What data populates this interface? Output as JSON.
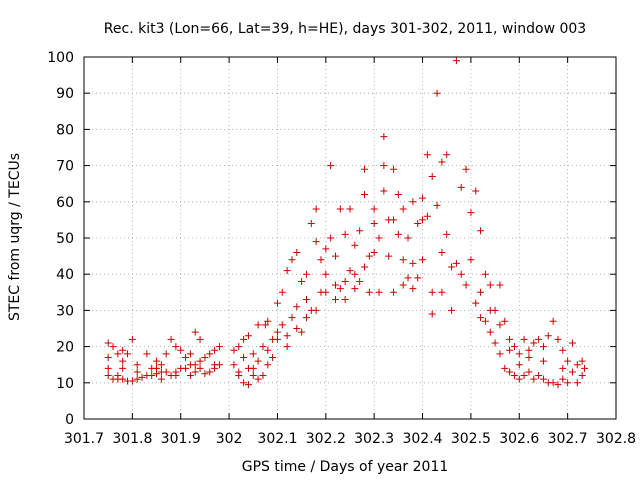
{
  "chart_data": {
    "type": "scatter",
    "title": "Rec. kit3 (Lon=66, Lat=39, h=HE), days 301-302, 2011, window 003",
    "xlabel": "GPS time / Days of year 2011",
    "ylabel": "STEC from uqrg / TECUs",
    "xlim": [
      301.7,
      302.8
    ],
    "ylim": [
      0,
      100
    ],
    "x_ticks": [
      301.7,
      301.8,
      301.9,
      302.0,
      302.1,
      302.2,
      302.3,
      302.4,
      302.5,
      302.6,
      302.7,
      302.8
    ],
    "x_tick_labels": [
      "301.7",
      "301.8",
      "301.9",
      "302",
      "302.1",
      "302.2",
      "302.3",
      "302.4",
      "302.5",
      "302.6",
      "302.7",
      "302.8"
    ],
    "y_ticks": [
      0,
      10,
      20,
      30,
      40,
      50,
      60,
      70,
      80,
      90,
      100
    ],
    "y_tick_labels": [
      "0",
      "10",
      "20",
      "30",
      "40",
      "50",
      "60",
      "70",
      "80",
      "90",
      "100"
    ],
    "grid": true,
    "marker": "+",
    "marker_color": "#cc0000",
    "series": [
      {
        "points": [
          [
            301.75,
            21
          ],
          [
            301.75,
            17
          ],
          [
            301.75,
            14
          ],
          [
            301.75,
            12
          ],
          [
            301.76,
            20
          ],
          [
            301.76,
            11
          ],
          [
            301.77,
            18
          ],
          [
            301.77,
            11
          ],
          [
            301.78,
            16
          ],
          [
            301.78,
            19
          ],
          [
            301.78,
            11
          ],
          [
            301.79,
            18
          ],
          [
            301.79,
            10.5
          ],
          [
            301.8,
            10.5
          ],
          [
            301.8,
            22
          ],
          [
            301.81,
            11
          ],
          [
            301.81,
            15
          ],
          [
            301.82,
            11.5
          ],
          [
            301.83,
            12
          ],
          [
            301.83,
            18
          ],
          [
            301.84,
            12
          ],
          [
            301.84,
            14
          ],
          [
            301.85,
            12.5
          ],
          [
            301.85,
            16
          ],
          [
            301.86,
            13
          ],
          [
            301.86,
            15
          ],
          [
            301.87,
            13
          ],
          [
            301.87,
            18
          ],
          [
            301.88,
            22
          ],
          [
            301.88,
            12
          ],
          [
            301.89,
            20
          ],
          [
            301.89,
            13
          ],
          [
            301.9,
            14
          ],
          [
            301.9,
            19
          ],
          [
            301.91,
            14
          ],
          [
            301.91,
            17
          ],
          [
            301.92,
            15
          ],
          [
            301.92,
            18
          ],
          [
            301.93,
            24
          ],
          [
            301.93,
            15
          ],
          [
            301.94,
            22
          ],
          [
            301.94,
            16
          ],
          [
            301.95,
            12.5
          ],
          [
            301.95,
            17
          ],
          [
            301.96,
            13
          ],
          [
            301.96,
            18
          ],
          [
            301.97,
            14
          ],
          [
            301.97,
            19
          ],
          [
            301.98,
            15
          ],
          [
            301.98,
            20
          ],
          [
            301.77,
            12
          ],
          [
            301.81,
            13
          ],
          [
            301.85,
            14
          ],
          [
            301.89,
            12
          ],
          [
            301.93,
            13
          ],
          [
            301.97,
            15
          ],
          [
            301.78,
            14
          ],
          [
            301.86,
            11
          ],
          [
            301.94,
            14
          ],
          [
            301.92,
            12
          ],
          [
            302.01,
            19
          ],
          [
            302.01,
            15
          ],
          [
            302.02,
            20
          ],
          [
            302.02,
            13
          ],
          [
            302.03,
            22
          ],
          [
            302.03,
            10
          ],
          [
            302.04,
            23
          ],
          [
            302.04,
            9.5
          ],
          [
            302.05,
            14
          ],
          [
            302.05,
            18
          ],
          [
            302.06,
            26
          ],
          [
            302.06,
            11
          ],
          [
            302.07,
            20
          ],
          [
            302.07,
            12
          ],
          [
            302.075,
            26
          ],
          [
            302.08,
            15
          ],
          [
            302.08,
            27
          ],
          [
            302.09,
            17
          ],
          [
            302.09,
            22
          ],
          [
            302.1,
            24
          ],
          [
            302.1,
            32
          ],
          [
            302.11,
            35
          ],
          [
            302.11,
            26
          ],
          [
            302.12,
            41
          ],
          [
            302.12,
            20
          ],
          [
            302.13,
            44
          ],
          [
            302.13,
            28
          ],
          [
            302.14,
            46
          ],
          [
            302.14,
            31
          ],
          [
            302.15,
            38
          ],
          [
            302.15,
            24
          ],
          [
            302.16,
            40
          ],
          [
            302.16,
            33
          ],
          [
            302.17,
            54
          ],
          [
            302.17,
            30
          ],
          [
            302.18,
            58
          ],
          [
            302.18,
            49
          ],
          [
            302.19,
            44
          ],
          [
            302.19,
            35
          ],
          [
            302.2,
            47
          ],
          [
            302.2,
            40
          ],
          [
            302.21,
            70
          ],
          [
            302.21,
            50
          ],
          [
            302.22,
            37
          ],
          [
            302.22,
            45
          ],
          [
            302.23,
            58
          ],
          [
            302.23,
            36
          ],
          [
            302.24,
            51
          ],
          [
            302.24,
            33
          ],
          [
            302.25,
            58
          ],
          [
            302.25,
            41
          ],
          [
            302.26,
            48
          ],
          [
            302.26,
            36
          ],
          [
            302.27,
            52
          ],
          [
            302.27,
            38
          ],
          [
            302.28,
            69
          ],
          [
            302.28,
            62
          ],
          [
            302.29,
            35
          ],
          [
            302.29,
            45
          ],
          [
            302.3,
            58
          ],
          [
            302.3,
            54
          ],
          [
            302.31,
            50
          ],
          [
            302.31,
            35
          ],
          [
            302.32,
            78
          ],
          [
            302.32,
            70
          ],
          [
            302.33,
            55
          ],
          [
            302.33,
            45
          ],
          [
            302.34,
            69
          ],
          [
            302.34,
            35
          ],
          [
            302.35,
            62
          ],
          [
            302.35,
            51
          ],
          [
            302.36,
            58
          ],
          [
            302.36,
            37
          ],
          [
            302.37,
            50
          ],
          [
            302.37,
            39
          ],
          [
            302.38,
            43
          ],
          [
            302.38,
            36
          ],
          [
            302.39,
            54
          ],
          [
            302.39,
            39
          ],
          [
            302.4,
            61
          ],
          [
            302.4,
            44
          ],
          [
            302.41,
            73
          ],
          [
            302.41,
            56
          ],
          [
            302.42,
            67
          ],
          [
            302.42,
            35
          ],
          [
            302.43,
            90
          ],
          [
            302.43,
            59
          ],
          [
            302.44,
            71
          ],
          [
            302.44,
            46
          ],
          [
            302.45,
            73
          ],
          [
            302.45,
            51
          ],
          [
            302.46,
            42
          ],
          [
            302.46,
            30
          ],
          [
            302.47,
            99
          ],
          [
            302.47,
            43
          ],
          [
            302.48,
            64
          ],
          [
            302.48,
            40
          ],
          [
            302.49,
            69
          ],
          [
            302.49,
            37
          ],
          [
            302.5,
            57
          ],
          [
            302.5,
            44
          ],
          [
            302.51,
            63
          ],
          [
            302.51,
            32
          ],
          [
            302.52,
            52
          ],
          [
            302.52,
            35
          ],
          [
            302.53,
            40
          ],
          [
            302.53,
            27
          ],
          [
            302.54,
            37
          ],
          [
            302.54,
            24
          ],
          [
            302.55,
            30
          ],
          [
            302.55,
            21
          ],
          [
            302.56,
            37
          ],
          [
            302.56,
            18
          ],
          [
            302.57,
            27
          ],
          [
            302.57,
            14
          ],
          [
            302.58,
            22
          ],
          [
            302.58,
            13
          ],
          [
            302.59,
            20
          ],
          [
            302.59,
            12
          ],
          [
            302.6,
            18
          ],
          [
            302.6,
            11
          ],
          [
            302.61,
            22
          ],
          [
            302.61,
            12
          ],
          [
            302.62,
            19
          ],
          [
            302.62,
            13
          ],
          [
            302.63,
            21
          ],
          [
            302.63,
            11
          ],
          [
            302.64,
            22
          ],
          [
            302.64,
            12
          ],
          [
            302.65,
            20
          ],
          [
            302.65,
            11
          ],
          [
            302.66,
            23
          ],
          [
            302.66,
            10
          ],
          [
            302.67,
            27
          ],
          [
            302.67,
            10
          ],
          [
            302.68,
            22
          ],
          [
            302.68,
            9.5
          ],
          [
            302.69,
            19
          ],
          [
            302.69,
            11
          ],
          [
            302.7,
            16
          ],
          [
            302.7,
            10
          ],
          [
            302.71,
            21
          ],
          [
            302.71,
            13
          ],
          [
            302.72,
            15
          ],
          [
            302.72,
            10
          ],
          [
            302.73,
            16
          ],
          [
            302.73,
            12
          ],
          [
            302.735,
            14
          ],
          [
            302.69,
            14
          ],
          [
            302.65,
            16
          ],
          [
            302.62,
            17
          ],
          [
            302.58,
            19
          ],
          [
            302.56,
            26
          ],
          [
            302.6,
            15
          ],
          [
            302.54,
            30
          ],
          [
            302.52,
            28
          ],
          [
            302.44,
            35
          ],
          [
            302.42,
            29
          ],
          [
            302.4,
            55
          ],
          [
            302.38,
            60
          ],
          [
            302.36,
            44
          ],
          [
            302.34,
            55
          ],
          [
            302.32,
            63
          ],
          [
            302.3,
            46
          ],
          [
            302.28,
            42
          ],
          [
            302.26,
            40
          ],
          [
            302.24,
            38
          ],
          [
            302.22,
            33
          ],
          [
            302.2,
            35
          ],
          [
            302.18,
            30
          ],
          [
            302.16,
            28
          ],
          [
            302.14,
            25
          ],
          [
            302.12,
            23
          ],
          [
            302.1,
            22
          ],
          [
            302.08,
            19
          ],
          [
            302.06,
            16
          ],
          [
            302.04,
            14
          ],
          [
            302.02,
            12
          ],
          [
            302.05,
            12
          ],
          [
            302.03,
            17
          ]
        ]
      }
    ]
  }
}
